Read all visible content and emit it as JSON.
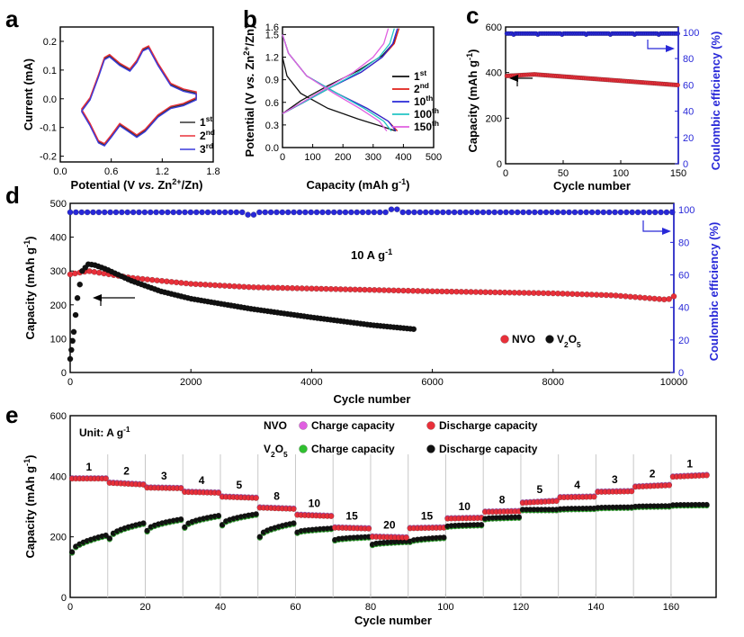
{
  "chart_data": [
    {
      "id": "a",
      "type": "line",
      "panel_label": "a",
      "xlabel_parts": [
        "Potential (V ",
        "vs.",
        " Zn",
        "2+",
        "/Zn)"
      ],
      "ylabel": "Current (mA)",
      "xlim": [
        0.0,
        1.8
      ],
      "ylim": [
        -0.22,
        0.25
      ],
      "xticks": [
        "0.0",
        "0.6",
        "1.2",
        "1.8"
      ],
      "yticks": [
        "-0.2",
        "-0.1",
        "0.0",
        "0.1",
        "0.2"
      ],
      "legend": [
        {
          "base": "1",
          "sup": "st",
          "color": "#333333"
        },
        {
          "base": "2",
          "sup": "nd",
          "color": "#e8303a"
        },
        {
          "base": "3",
          "sup": "rd",
          "color": "#3a3adb"
        }
      ],
      "cv": {
        "anodic_x": [
          0.25,
          0.35,
          0.45,
          0.52,
          0.58,
          0.7,
          0.82,
          0.9,
          0.97,
          1.04,
          1.15,
          1.3,
          1.45,
          1.6
        ],
        "anodic_y": [
          -0.04,
          0.0,
          0.08,
          0.14,
          0.15,
          0.12,
          0.1,
          0.13,
          0.17,
          0.18,
          0.12,
          0.05,
          0.03,
          0.02
        ],
        "cathodic_x": [
          1.6,
          1.45,
          1.3,
          1.15,
          1.0,
          0.9,
          0.8,
          0.7,
          0.6,
          0.52,
          0.45,
          0.35,
          0.25
        ],
        "cathodic_y": [
          0.0,
          -0.02,
          -0.03,
          -0.06,
          -0.11,
          -0.13,
          -0.11,
          -0.09,
          -0.13,
          -0.16,
          -0.15,
          -0.09,
          -0.04
        ]
      }
    },
    {
      "id": "b",
      "type": "line",
      "panel_label": "b",
      "xlabel_parts": [
        "Capacity (mAh g",
        "-1",
        ")"
      ],
      "ylabel_parts": [
        "Potential (V ",
        "vs.",
        " Zn",
        "2+",
        "/Zn)"
      ],
      "xlim": [
        0,
        500
      ],
      "ylim": [
        0.0,
        1.6
      ],
      "xticks": [
        "0",
        "100",
        "200",
        "300",
        "400",
        "500"
      ],
      "yticks": [
        "0.0",
        "0.3",
        "0.6",
        "0.9",
        "1.2",
        "1.5"
      ],
      "yticks_right": [
        "1.6"
      ],
      "legend": [
        {
          "base": "1",
          "sup": "st",
          "color": "#111111"
        },
        {
          "base": "2",
          "sup": "nd",
          "color": "#e0201a"
        },
        {
          "base": "10",
          "sup": "th",
          "color": "#2a2ad8"
        },
        {
          "base": "100",
          "sup": "th",
          "color": "#22c4c4"
        },
        {
          "base": "150",
          "sup": "th",
          "color": "#e060e0"
        }
      ],
      "curves": [
        {
          "name": "1st",
          "discharge_x": [
            0,
            15,
            60,
            150,
            250,
            330,
            375
          ],
          "discharge_y": [
            1.2,
            0.95,
            0.72,
            0.52,
            0.38,
            0.28,
            0.22
          ],
          "charge_x": [
            0,
            60,
            150,
            250,
            330,
            370,
            385
          ],
          "charge_y": [
            0.45,
            0.62,
            0.82,
            1.02,
            1.22,
            1.4,
            1.58
          ]
        },
        {
          "name": "2nd",
          "discharge_x": [
            0,
            20,
            80,
            180,
            280,
            350,
            380
          ],
          "discharge_y": [
            1.5,
            1.25,
            0.95,
            0.72,
            0.52,
            0.35,
            0.22
          ],
          "charge_x": [
            0,
            70,
            160,
            260,
            330,
            370,
            385
          ],
          "charge_y": [
            0.45,
            0.6,
            0.8,
            1.0,
            1.2,
            1.38,
            1.58
          ]
        },
        {
          "name": "10th",
          "discharge_x": [
            0,
            20,
            80,
            180,
            280,
            350,
            375
          ],
          "discharge_y": [
            1.5,
            1.25,
            0.95,
            0.72,
            0.52,
            0.35,
            0.22
          ],
          "charge_x": [
            0,
            70,
            160,
            260,
            330,
            365,
            380
          ],
          "charge_y": [
            0.45,
            0.6,
            0.8,
            1.0,
            1.2,
            1.38,
            1.58
          ]
        },
        {
          "name": "100th",
          "discharge_x": [
            0,
            20,
            80,
            180,
            270,
            335,
            360
          ],
          "discharge_y": [
            1.5,
            1.25,
            0.95,
            0.72,
            0.52,
            0.35,
            0.22
          ],
          "charge_x": [
            0,
            70,
            160,
            250,
            320,
            355,
            370
          ],
          "charge_y": [
            0.45,
            0.6,
            0.8,
            1.0,
            1.2,
            1.38,
            1.58
          ]
        },
        {
          "name": "150th",
          "discharge_x": [
            0,
            20,
            80,
            170,
            255,
            320,
            345
          ],
          "discharge_y": [
            1.5,
            1.25,
            0.95,
            0.72,
            0.52,
            0.35,
            0.22
          ],
          "charge_x": [
            0,
            65,
            150,
            235,
            300,
            335,
            350
          ],
          "charge_y": [
            0.45,
            0.6,
            0.8,
            1.0,
            1.2,
            1.38,
            1.58
          ]
        }
      ]
    },
    {
      "id": "c",
      "type": "scatter",
      "panel_label": "c",
      "xlabel": "Cycle number",
      "ylabel_parts": [
        "Capacity (mAh g",
        "-1",
        ")"
      ],
      "ylabel_right": "Coulombic efficiency (%)",
      "xlim": [
        0,
        150
      ],
      "ylim": [
        0,
        600
      ],
      "ylim_right": [
        0,
        104
      ],
      "xticks": [
        "0",
        "50",
        "100",
        "150"
      ],
      "yticks": [
        "0",
        "200",
        "400",
        "600"
      ],
      "yticks_right": [
        "0",
        "20",
        "40",
        "60",
        "80",
        "100"
      ],
      "capacity_start": 385,
      "capacity_peak": 392,
      "capacity_end": 345,
      "coulombic_efficiency": 99,
      "colors": {
        "capacity": "#e8303a",
        "efficiency": "#2828d8"
      }
    },
    {
      "id": "d",
      "type": "scatter",
      "panel_label": "d",
      "xlabel": "Cycle number",
      "ylabel_parts": [
        "Capacity (mAh g",
        "-1",
        ")"
      ],
      "ylabel_right": "Coulombic efficiency (%)",
      "xlim": [
        0,
        10000
      ],
      "ylim": [
        0,
        500
      ],
      "ylim_right": [
        0,
        104
      ],
      "xticks": [
        "0",
        "2000",
        "4000",
        "6000",
        "8000",
        "10000"
      ],
      "yticks": [
        "0",
        "100",
        "200",
        "300",
        "400",
        "500"
      ],
      "yticks_right": [
        "0",
        "20",
        "40",
        "60",
        "80",
        "100"
      ],
      "annotation_parts": [
        "10 A g",
        "-1"
      ],
      "series": [
        {
          "name": "NVO",
          "color": "#e8303a",
          "x": [
            0,
            300,
            1000,
            2000,
            3000,
            4000,
            5000,
            6000,
            7000,
            8000,
            9000,
            9900,
            10000
          ],
          "values": [
            290,
            300,
            280,
            262,
            252,
            248,
            244,
            240,
            237,
            234,
            228,
            215,
            225
          ]
        },
        {
          "name": "V2O5",
          "color": "#111111",
          "x": [
            0,
            60,
            120,
            200,
            300,
            400,
            600,
            1000,
            1500,
            2000,
            3000,
            4000,
            5000,
            5700
          ],
          "values": [
            40,
            120,
            220,
            300,
            320,
            318,
            305,
            272,
            240,
            218,
            188,
            163,
            140,
            128
          ]
        }
      ],
      "efficiency": {
        "name": "Coulombic efficiency",
        "color": "#2828d8",
        "value": 98.5
      },
      "legend": [
        {
          "base": "NVO",
          "sub": "",
          "color": "#e8303a"
        },
        {
          "base": "V",
          "sub": "2",
          "tail": "O",
          "sub2": "5",
          "color": "#111111"
        }
      ]
    },
    {
      "id": "e",
      "type": "scatter",
      "panel_label": "e",
      "xlabel": "Cycle number",
      "ylabel_parts": [
        "Capacity (mAh g",
        "-1",
        ")"
      ],
      "xlim": [
        0,
        172
      ],
      "ylim": [
        0,
        600
      ],
      "xticks": [
        "0",
        "20",
        "40",
        "60",
        "80",
        "100",
        "120",
        "140",
        "160"
      ],
      "yticks": [
        "0",
        "200",
        "400",
        "600"
      ],
      "unit_note_parts": [
        "Unit: A g",
        "-1"
      ],
      "legend": {
        "nvo_label": "NVO",
        "v2o5_label_parts": [
          "V",
          "2",
          "O",
          "5"
        ],
        "charge": "Charge capacity",
        "discharge": "Discharge capacity",
        "colors": {
          "nvo_charge": "#e060e0",
          "nvo_discharge": "#e8303a",
          "v2o5_charge": "#30c030",
          "v2o5_discharge": "#111111"
        }
      },
      "rates": [
        "1",
        "2",
        "3",
        "4",
        "5",
        "8",
        "10",
        "15",
        "20",
        "15",
        "10",
        "8",
        "5",
        "4",
        "3",
        "2",
        "1"
      ],
      "segments": [
        {
          "start": 0,
          "end": 10,
          "nvo": [
            392,
            392
          ],
          "v2o5": [
            150,
            205
          ]
        },
        {
          "start": 10,
          "end": 20,
          "nvo": [
            378,
            372
          ],
          "v2o5": [
            195,
            245
          ]
        },
        {
          "start": 20,
          "end": 30,
          "nvo": [
            362,
            360
          ],
          "v2o5": [
            220,
            258
          ]
        },
        {
          "start": 30,
          "end": 40,
          "nvo": [
            348,
            345
          ],
          "v2o5": [
            232,
            270
          ]
        },
        {
          "start": 40,
          "end": 50,
          "nvo": [
            332,
            328
          ],
          "v2o5": [
            240,
            275
          ]
        },
        {
          "start": 50,
          "end": 60,
          "nvo": [
            296,
            292
          ],
          "v2o5": [
            200,
            245
          ]
        },
        {
          "start": 60,
          "end": 70,
          "nvo": [
            272,
            268
          ],
          "v2o5": [
            215,
            228
          ]
        },
        {
          "start": 70,
          "end": 80,
          "nvo": [
            230,
            227
          ],
          "v2o5": [
            190,
            200
          ]
        },
        {
          "start": 80,
          "end": 90,
          "nvo": [
            200,
            197
          ],
          "v2o5": [
            175,
            185
          ]
        },
        {
          "start": 90,
          "end": 100,
          "nvo": [
            228,
            230
          ],
          "v2o5": [
            185,
            198
          ]
        },
        {
          "start": 100,
          "end": 110,
          "nvo": [
            260,
            262
          ],
          "v2o5": [
            235,
            240
          ]
        },
        {
          "start": 110,
          "end": 120,
          "nvo": [
            282,
            284
          ],
          "v2o5": [
            260,
            265
          ]
        },
        {
          "start": 120,
          "end": 130,
          "nvo": [
            312,
            318
          ],
          "v2o5": [
            290,
            290
          ]
        },
        {
          "start": 130,
          "end": 140,
          "nvo": [
            330,
            332
          ],
          "v2o5": [
            292,
            294
          ]
        },
        {
          "start": 140,
          "end": 150,
          "nvo": [
            348,
            350
          ],
          "v2o5": [
            296,
            298
          ]
        },
        {
          "start": 150,
          "end": 160,
          "nvo": [
            365,
            370
          ],
          "v2o5": [
            300,
            302
          ]
        },
        {
          "start": 160,
          "end": 170,
          "nvo": [
            398,
            403
          ],
          "v2o5": [
            305,
            306
          ]
        }
      ]
    }
  ]
}
